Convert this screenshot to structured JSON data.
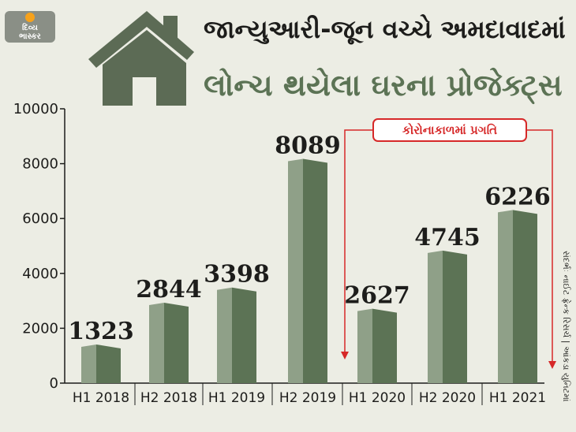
{
  "brand": {
    "line1": "દિવ્ય",
    "line2": "ભાસ્કર"
  },
  "title_line1": "જાન્યુઆરી-જૂન વચ્ચે અમદાવાદમાં",
  "title_line2": "લોન્ચ થયેલા ઘરના પ્રોજેક્ટ્સ",
  "annotation": "કોરોનાકાળમાં પ્રગતિ",
  "source": "સંદર્ભઃ નાઈટ ફ્રેન્ક રિસર્ચ | આંકડા યુનિટમાં",
  "colors": {
    "bar_light": "#8fa088",
    "bar_dark": "#5c7355",
    "accent": "#d62828",
    "house": "#5c6b55"
  },
  "chart_data": {
    "type": "bar",
    "categories": [
      "H1 2018",
      "H2 2018",
      "H1 2019",
      "H2 2019",
      "H1 2020",
      "H2 2020",
      "H1 2021"
    ],
    "values": [
      1323,
      2844,
      3398,
      8089,
      2627,
      4745,
      6226
    ],
    "value_labels": [
      "1323",
      "2844",
      "3398",
      "8089",
      "2627",
      "4745",
      "6226"
    ],
    "yticks": [
      "0",
      "2000",
      "4000",
      "6000",
      "8000",
      "10000"
    ],
    "ylim": [
      0,
      10000
    ],
    "title": "",
    "xlabel": "",
    "ylabel": "",
    "grid": false,
    "legend": "none"
  }
}
